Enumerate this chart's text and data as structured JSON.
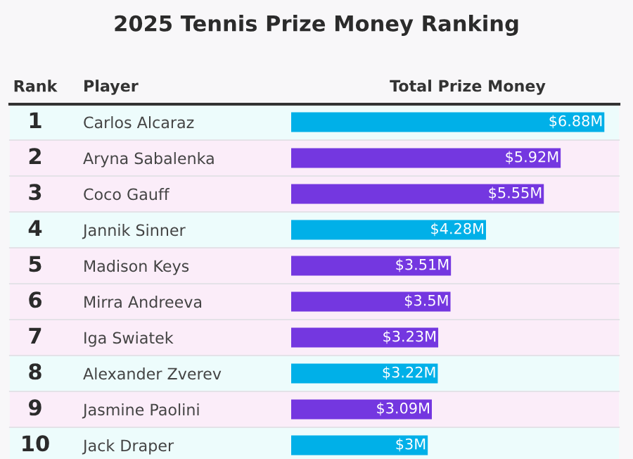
{
  "chart_data": {
    "type": "bar",
    "orientation": "horizontal",
    "title": "2025 Tennis Prize Money Ranking",
    "ylabel": "Player",
    "xlabel": "Total Prize Money",
    "categories": [
      "Carlos Alcaraz",
      "Aryna Sabalenka",
      "Coco Gauff",
      "Jannik Sinner",
      "Madison Keys",
      "Mirra Andreeva",
      "Iga Swiatek",
      "Alexander Zverev",
      "Jasmine Paolini",
      "Jack Draper"
    ],
    "values": [
      6.88,
      5.92,
      5.55,
      4.28,
      3.51,
      3.5,
      3.23,
      3.22,
      3.09,
      3.0
    ],
    "colors": [
      "#00b0e8",
      "#7437e0",
      "#7437e0",
      "#00b0e8",
      "#7437e0",
      "#7437e0",
      "#7437e0",
      "#00b0e8",
      "#7437e0",
      "#00b0e8"
    ],
    "value_labels": [
      "$6.88M",
      "$5.92M",
      "$5.55M",
      "$4.28M",
      "$3.51M",
      "$3.5M",
      "$3.23M",
      "$3.22M",
      "$3.09M",
      "$3M"
    ],
    "xlim": [
      0,
      7.2
    ],
    "tick_labels": "y",
    "grid": false,
    "legend": false,
    "annotations": [
      "Rank",
      "1",
      "2",
      "3",
      "4",
      "5",
      "6",
      "7",
      "8",
      "9",
      "10"
    ]
  }
}
